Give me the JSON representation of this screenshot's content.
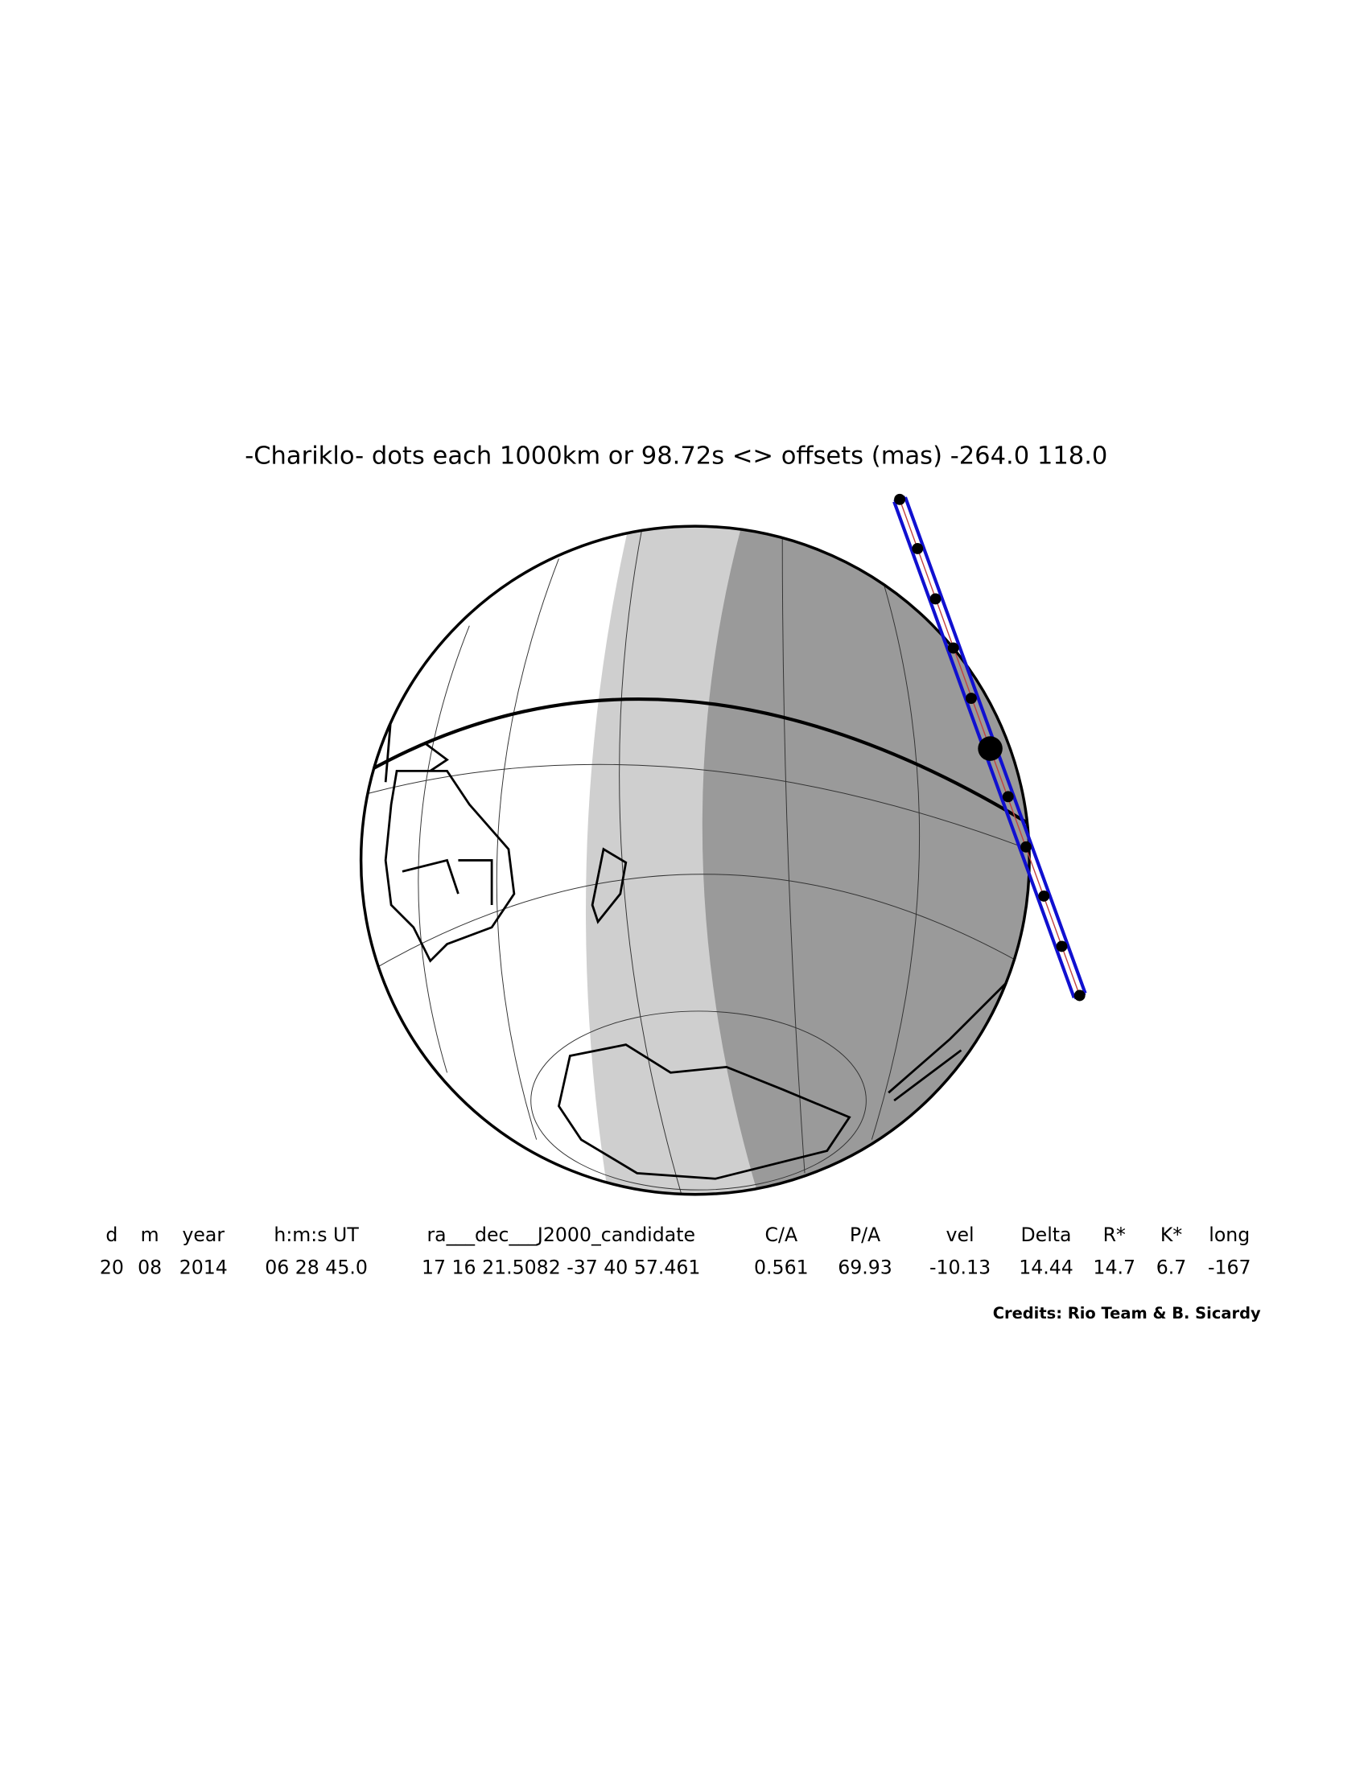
{
  "header": {
    "title": "-Chariklo- dots each 1000km or 98.72s <> offsets (mas) -264.0  118.0"
  },
  "table": {
    "columns": [
      "d",
      "m",
      "year",
      "h:m:s UT",
      "ra___dec___J2000_candidate",
      "C/A",
      "P/A",
      "vel",
      "Delta",
      "R*",
      "K*",
      "long"
    ],
    "rows": [
      [
        "20",
        "08",
        "2014",
        "06 28 45.0",
        "17 16 21.5082 -37 40 57.461",
        "0.561",
        "69.93",
        "-10.13",
        "14.44",
        "14.7",
        "6.7",
        "-167"
      ]
    ]
  },
  "credits": "Credits: Rio Team & B. Sicardy"
}
